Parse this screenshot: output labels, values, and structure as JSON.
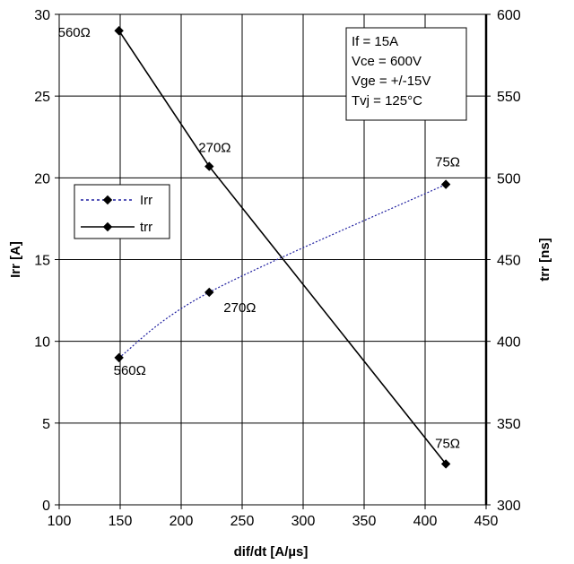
{
  "chart_data": {
    "type": "line",
    "xlabel": "dif/dt [A/µs]",
    "ylabel": "Irr [A]",
    "y2label": "trr [ns]",
    "xlim": [
      100,
      450
    ],
    "ylim": [
      0,
      30
    ],
    "y2lim": [
      300,
      600
    ],
    "x_ticks": [
      "100",
      "150",
      "200",
      "250",
      "300",
      "350",
      "400",
      "450"
    ],
    "y_ticks": [
      "0",
      "5",
      "10",
      "15",
      "20",
      "25",
      "30"
    ],
    "y2_ticks": [
      "300",
      "350",
      "400",
      "450",
      "500",
      "550",
      "600"
    ],
    "grid": true,
    "legend_position": "left",
    "series": [
      {
        "name": "Irr",
        "axis": "left",
        "style": "dotted",
        "color": "#1f1fa0",
        "x": [
          149,
          223,
          417
        ],
        "y": [
          9.0,
          13.0,
          19.6
        ],
        "point_labels": [
          "560Ω",
          "270Ω",
          "75Ω"
        ]
      },
      {
        "name": "trr",
        "axis": "right",
        "style": "solid",
        "color": "#000000",
        "x": [
          149,
          223,
          417
        ],
        "y": [
          590,
          507,
          325
        ],
        "point_labels": [
          "560Ω",
          "270Ω",
          "75Ω"
        ]
      }
    ],
    "info_box": [
      "If = 15A",
      "Vce = 600V",
      "Vge = +/-15V",
      "Tvj = 125°C"
    ]
  }
}
